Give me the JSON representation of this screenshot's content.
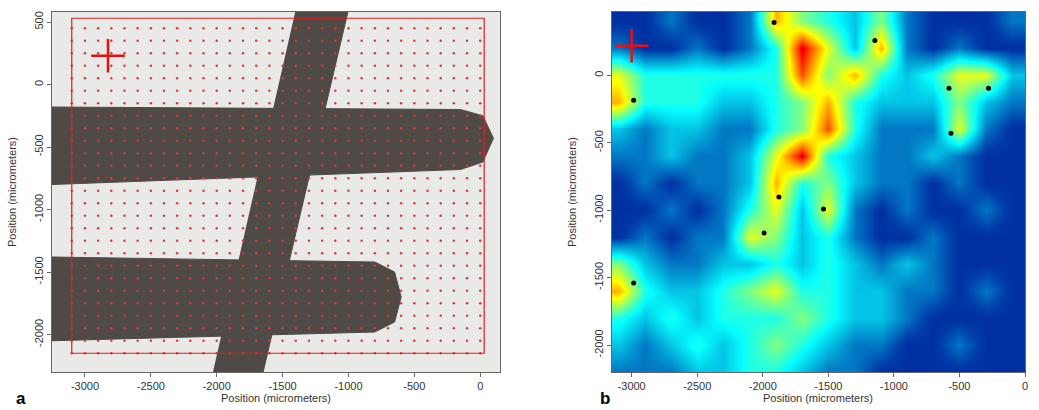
{
  "chart_data": [
    {
      "type": "scatter",
      "panel": "a",
      "x_label": "Position (micrometers)",
      "y_label": "Position (micrometers)",
      "xlim": [
        -3250,
        150
      ],
      "ylim": [
        -2300,
        580
      ],
      "xticks": [
        -3000,
        -2500,
        -2000,
        -1500,
        -1000,
        -500,
        0
      ],
      "yticks": [
        500,
        0,
        -500,
        -1000,
        -1500,
        -2000
      ],
      "grid": false,
      "color": "#4f4a45",
      "regions": [
        {
          "x": [
            -3250,
            -150,
            20,
            100,
            20,
            -150,
            -3250
          ],
          "y": [
            -180,
            -200,
            -250,
            -430,
            -620,
            -680,
            -800
          ]
        },
        {
          "x": [
            -3250,
            -800,
            -650,
            -600,
            -650,
            -800,
            -3250
          ],
          "y": [
            -1380,
            -1420,
            -1500,
            -1700,
            -1900,
            -1980,
            -2050
          ]
        },
        {
          "x": [
            -1400,
            -1000,
            -1670,
            -2050
          ],
          "y": [
            600,
            600,
            -2400,
            -2400
          ]
        }
      ],
      "scan_area": {
        "x": [
          -3100,
          30
        ],
        "y": [
          -2150,
          530
        ],
        "step": 100
      },
      "cursor": [
        -2825,
        230
      ]
    },
    {
      "type": "heatmap",
      "panel": "b",
      "x_label": "Position (micrometers)",
      "y_label": "Position (micrometers)",
      "xlim": [
        -3150,
        0
      ],
      "ylim": [
        -2200,
        470
      ],
      "xticks": [
        -3000,
        -2500,
        -2000,
        -1500,
        -1000,
        -500,
        0
      ],
      "yticks": [
        0,
        -500,
        -1000,
        -1500,
        -2000
      ],
      "grid": false,
      "x": [
        -3100,
        -2900,
        -2700,
        -2500,
        -2300,
        -2100,
        -1900,
        -1700,
        -1500,
        -1300,
        -1100,
        -900,
        -700,
        -500,
        -300,
        -100
      ],
      "y": [
        -2200,
        -2000,
        -1800,
        -1600,
        -1400,
        -1200,
        -1000,
        -800,
        -600,
        -400,
        -200,
        0,
        200,
        400
      ],
      "z": [
        [
          2,
          2,
          2,
          3,
          3,
          4,
          4,
          3,
          2,
          2,
          1,
          1,
          1,
          1,
          1,
          1
        ],
        [
          3,
          2,
          3,
          4,
          3,
          4,
          5,
          4,
          3,
          2,
          2,
          1,
          1,
          2,
          1,
          1
        ],
        [
          4,
          3,
          4,
          3,
          4,
          4,
          4,
          5,
          4,
          3,
          3,
          2,
          1,
          1,
          1,
          1
        ],
        [
          7,
          4,
          3,
          3,
          4,
          5,
          6,
          4,
          4,
          3,
          3,
          2,
          2,
          1,
          2,
          1
        ],
        [
          5,
          3,
          2,
          2,
          3,
          3,
          4,
          3,
          4,
          3,
          2,
          3,
          2,
          1,
          1,
          1
        ],
        [
          1,
          2,
          1,
          2,
          2,
          6,
          5,
          3,
          4,
          2,
          1,
          1,
          2,
          1,
          1,
          1
        ],
        [
          1,
          1,
          2,
          1,
          2,
          4,
          6,
          3,
          6,
          2,
          1,
          2,
          1,
          1,
          2,
          1
        ],
        [
          1,
          2,
          1,
          2,
          2,
          3,
          7,
          4,
          5,
          3,
          2,
          2,
          1,
          2,
          1,
          1
        ],
        [
          2,
          2,
          3,
          2,
          2,
          3,
          6,
          9,
          4,
          3,
          2,
          2,
          3,
          2,
          1,
          1
        ],
        [
          3,
          2,
          3,
          3,
          2,
          2,
          4,
          5,
          8,
          4,
          2,
          2,
          2,
          6,
          2,
          1
        ],
        [
          7,
          4,
          4,
          4,
          3,
          3,
          4,
          5,
          7,
          4,
          3,
          3,
          3,
          5,
          3,
          2
        ],
        [
          6,
          4,
          4,
          4,
          4,
          4,
          4,
          8,
          5,
          7,
          4,
          3,
          4,
          6,
          6,
          3
        ],
        [
          2,
          1,
          1,
          2,
          1,
          2,
          4,
          9,
          6,
          3,
          7,
          2,
          1,
          2,
          1,
          1
        ],
        [
          1,
          1,
          2,
          1,
          1,
          2,
          7,
          5,
          4,
          3,
          5,
          2,
          1,
          1,
          1,
          2
        ]
      ],
      "zlim": [
        0,
        10
      ],
      "peaks": {
        "x": [
          -1914,
          -1145,
          -2985,
          -580,
          -278,
          -565,
          -1877,
          -1537,
          -1990,
          -2985
        ],
        "y": [
          392,
          259,
          -185,
          -96,
          -96,
          -429,
          -903,
          -992,
          -1169,
          -1539
        ]
      },
      "cursor": [
        -3000,
        220
      ]
    }
  ]
}
